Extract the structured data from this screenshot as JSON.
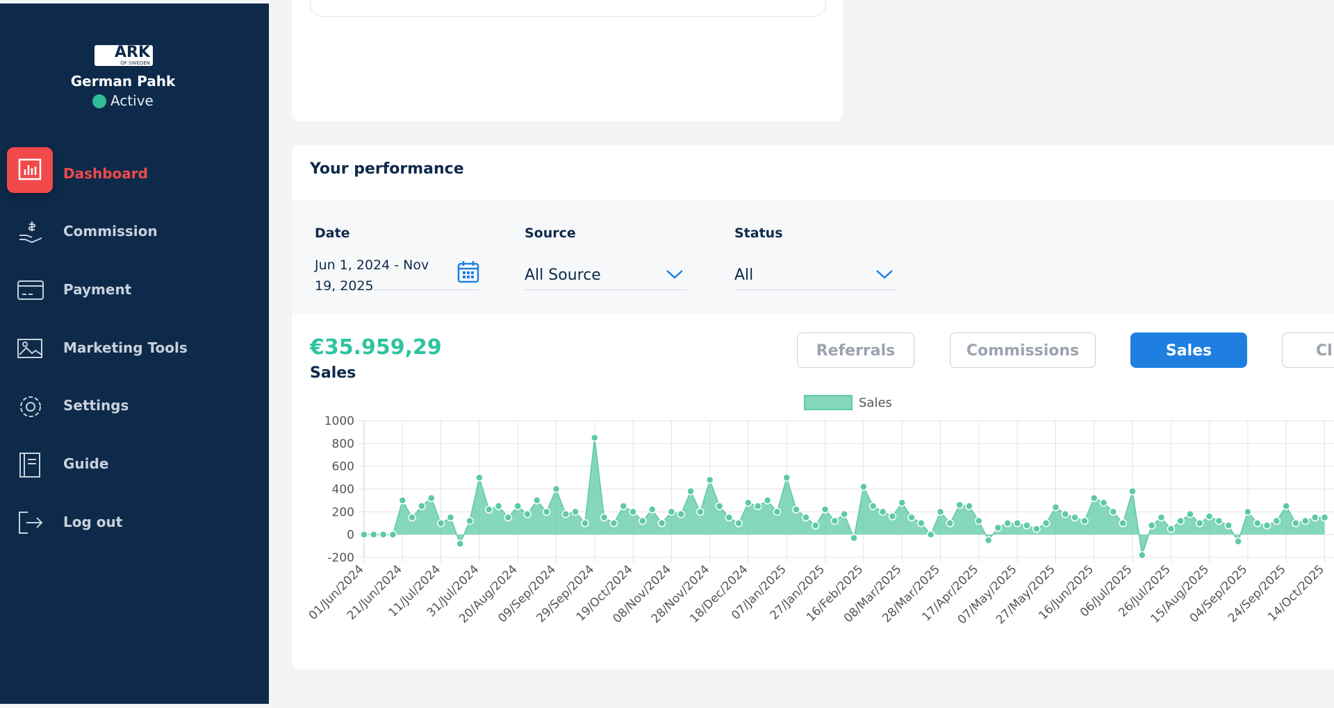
{
  "sidebar": {
    "brand": "ARK",
    "brand_sub": "OF SWEDEN",
    "user": "German Pahk",
    "status": "Active",
    "menu": [
      "Dashboard",
      "Commission",
      "Payment",
      "Marketing Tools",
      "Settings",
      "Guide",
      "Log out"
    ]
  },
  "performance": {
    "title": "Your performance",
    "filters": [
      {
        "label": "Date",
        "value": "Jun 1, 2024 - Nov 19, 2025"
      },
      {
        "label": "Source",
        "value": "All Source"
      },
      {
        "label": "Status",
        "value": "All"
      }
    ],
    "total": "€35.959,29",
    "total_label": "Sales",
    "tabs": [
      "Referrals",
      "Commissions",
      "Sales",
      "Cl"
    ]
  },
  "chart_data": {
    "type": "line",
    "fill": true,
    "categories": [
      "01/Jun/2024",
      null,
      null,
      null,
      "21/Jun/2024",
      null,
      null,
      null,
      "11/Jul/2024",
      null,
      null,
      null,
      "31/Jul/2024",
      null,
      null,
      null,
      "20/Aug/2024",
      null,
      null,
      null,
      "09/Sep/2024",
      null,
      null,
      null,
      "29/Sep/2024",
      null,
      null,
      null,
      "19/Oct/2024",
      null,
      null,
      null,
      "08/Nov/2024",
      null,
      null,
      null,
      "28/Nov/2024",
      null,
      null,
      null,
      "18/Dec/2024",
      null,
      null,
      null,
      "07/Jan/2025",
      null,
      null,
      null,
      "27/Jan/2025",
      null,
      null,
      null,
      "16/Feb/2025",
      null,
      null,
      null,
      "08/Mar/2025",
      null,
      null,
      null,
      "28/Mar/2025",
      null,
      null,
      null,
      "17/Apr/2025",
      null,
      null,
      null,
      "07/May/2025",
      null,
      null,
      null,
      "27/May/2025",
      null,
      null,
      null,
      "16/Jun/2025",
      null,
      null,
      null,
      "06/Jul/2025",
      null,
      null,
      null,
      "26/Jul/2025",
      null,
      null,
      null,
      "15/Aug/2025",
      null,
      null,
      null,
      "04/Sep/2025",
      null,
      null,
      null,
      "24/Sep/2025",
      null,
      null,
      null,
      "14/Oct/2025"
    ],
    "series": [
      {
        "name": "Sales",
        "color": "#5cc9a7",
        "values": [
          0,
          0,
          0,
          0,
          300,
          150,
          250,
          320,
          100,
          150,
          -80,
          120,
          500,
          220,
          250,
          150,
          250,
          180,
          300,
          200,
          400,
          180,
          200,
          100,
          850,
          150,
          100,
          250,
          200,
          120,
          220,
          100,
          200,
          180,
          380,
          200,
          480,
          250,
          150,
          100,
          280,
          250,
          300,
          200,
          500,
          220,
          150,
          80,
          220,
          120,
          180,
          -30,
          420,
          250,
          200,
          160,
          280,
          150,
          100,
          0,
          200,
          100,
          260,
          250,
          120,
          -50,
          60,
          100,
          100,
          80,
          50,
          100,
          240,
          180,
          150,
          120,
          320,
          280,
          200,
          100,
          380,
          -180,
          80,
          150,
          50,
          120,
          180,
          100,
          160,
          120,
          80,
          -60,
          200,
          100,
          80,
          120,
          250,
          100,
          120,
          150,
          150
        ]
      }
    ],
    "ylim": [
      -200,
      1000
    ],
    "yticks": [
      -200,
      0,
      200,
      400,
      600,
      800,
      1000
    ],
    "grid": true,
    "legend": "top"
  }
}
